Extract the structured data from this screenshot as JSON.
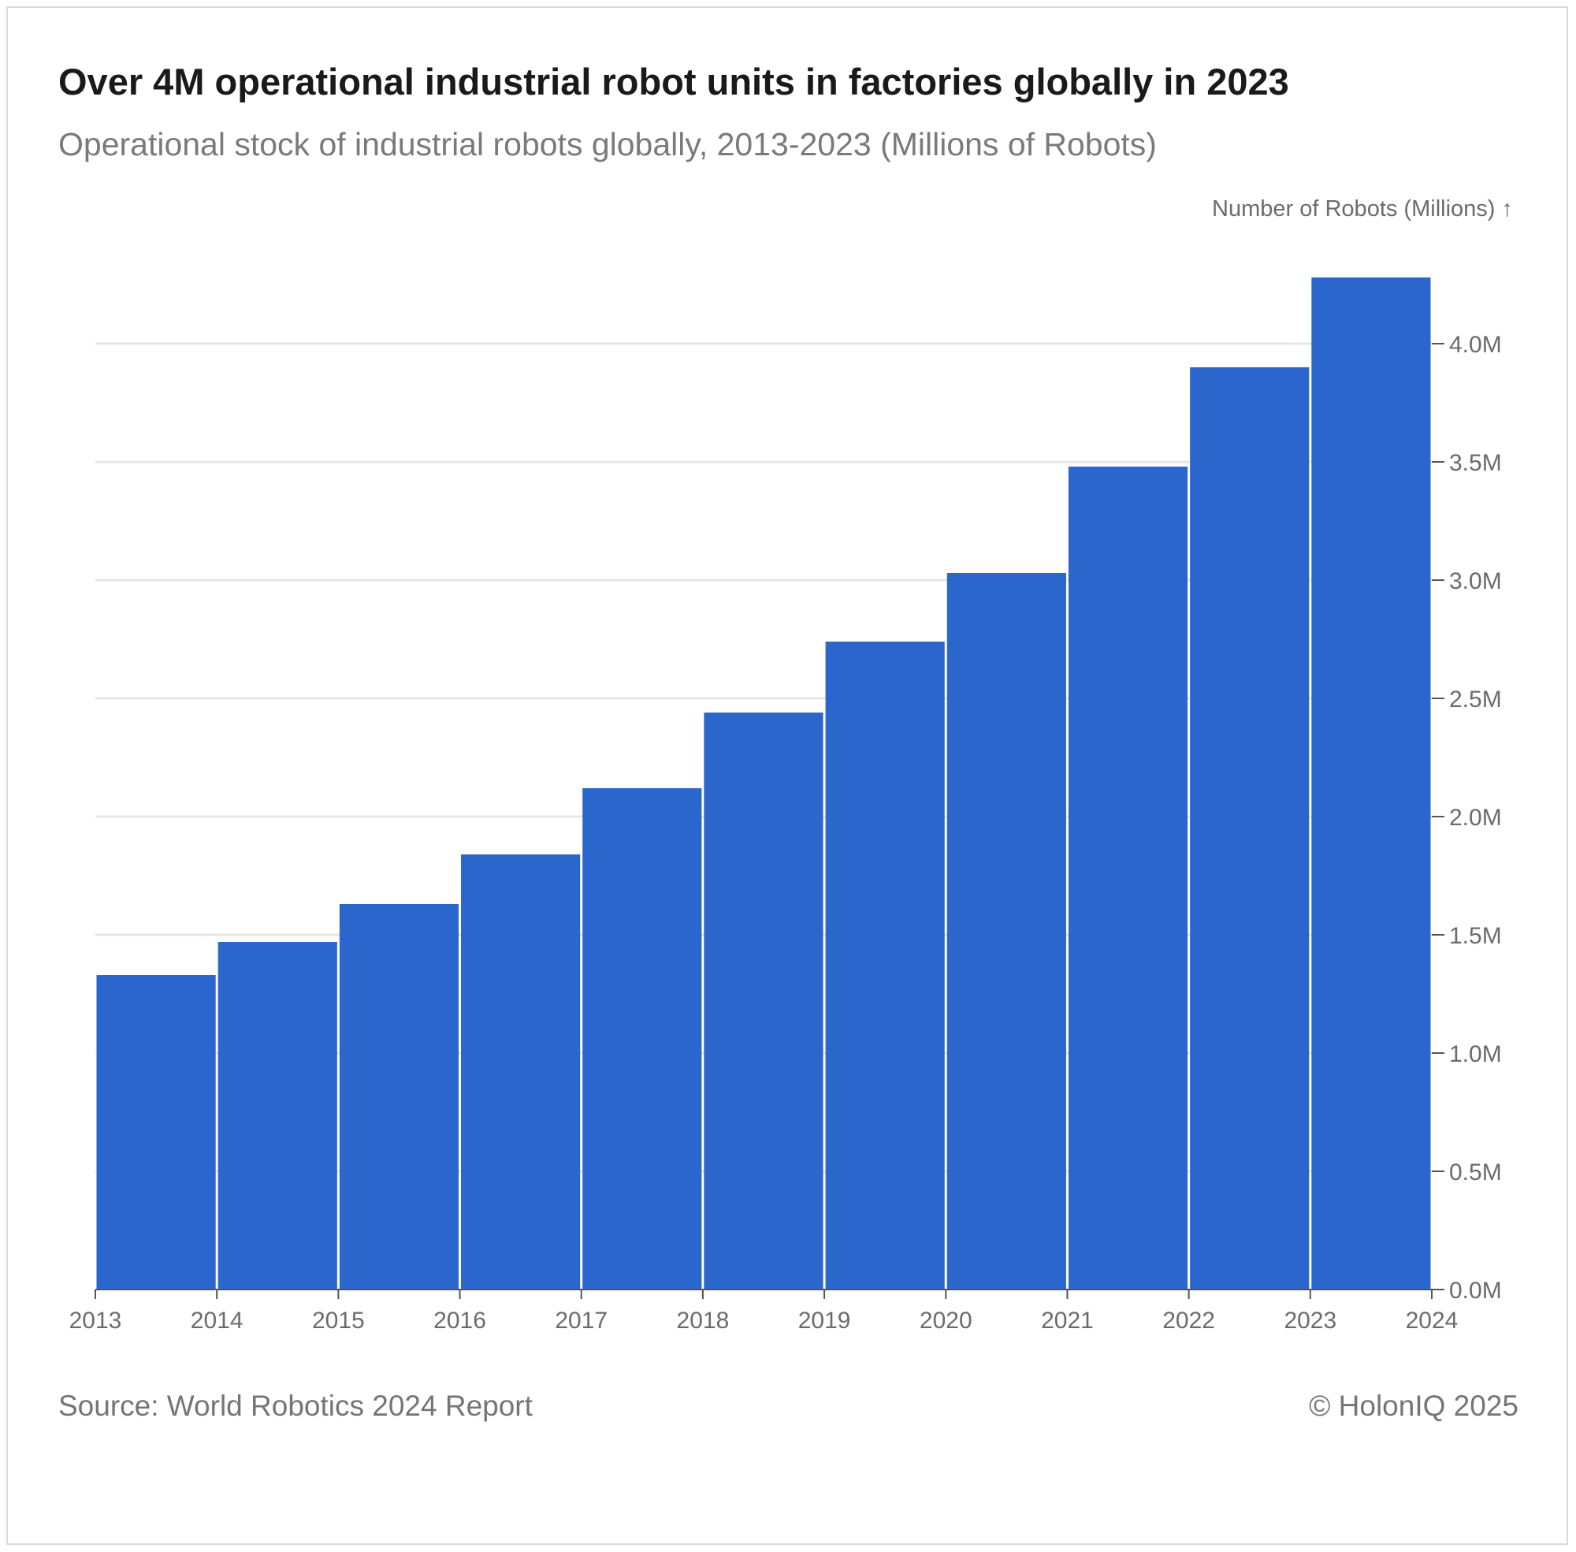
{
  "title": "Over 4M operational industrial robot units in factories globally in 2023",
  "subtitle": "Operational stock of industrial robots globally, 2013-2023 (Millions of Robots)",
  "footer": {
    "source": "Source: World Robotics 2024 Report",
    "copyright": "© HolonIQ 2025"
  },
  "colors": {
    "bar": "#2b66cc",
    "grid": "#e6e6e6",
    "axis_text": "#6b6b6b"
  },
  "chart_data": {
    "type": "bar",
    "categories": [
      "2013",
      "2014",
      "2015",
      "2016",
      "2017",
      "2018",
      "2019",
      "2020",
      "2021",
      "2022",
      "2023"
    ],
    "values": [
      1.33,
      1.47,
      1.63,
      1.84,
      2.12,
      2.44,
      2.74,
      3.03,
      3.48,
      3.9,
      4.28
    ],
    "x_ticks": [
      "2013",
      "2014",
      "2015",
      "2016",
      "2017",
      "2018",
      "2019",
      "2020",
      "2021",
      "2022",
      "2023",
      "2024"
    ],
    "y_ticks": [
      {
        "value": 0.0,
        "label": "0.0M"
      },
      {
        "value": 0.5,
        "label": "0.5M"
      },
      {
        "value": 1.0,
        "label": "1.0M"
      },
      {
        "value": 1.5,
        "label": "1.5M"
      },
      {
        "value": 2.0,
        "label": "2.0M"
      },
      {
        "value": 2.5,
        "label": "2.5M"
      },
      {
        "value": 3.0,
        "label": "3.0M"
      },
      {
        "value": 3.5,
        "label": "3.5M"
      },
      {
        "value": 4.0,
        "label": "4.0M"
      }
    ],
    "ylabel": "Number of Robots (Millions) ↑",
    "xlabel": "",
    "ylim": [
      0,
      4.28
    ],
    "y_axis_position": "right",
    "grid": true,
    "legend": "none"
  }
}
